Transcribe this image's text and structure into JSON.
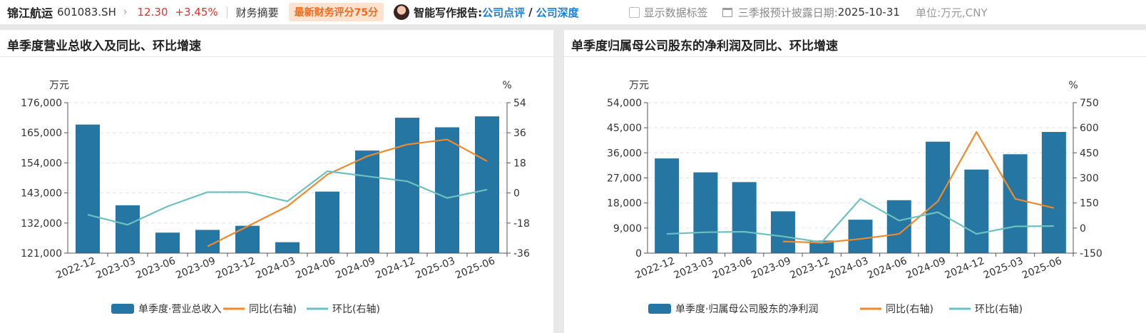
{
  "header": {
    "stock_name": "锦江航运",
    "stock_code": "601083.SH",
    "chevron": "›",
    "price": "12.30",
    "change": "+3.45%",
    "summary_label": "财务摘要",
    "score_badge": "最新财务评分75分",
    "report_label": "智能写作报告:",
    "report_link1": "公司点评",
    "report_separator": "/",
    "report_link2": "公司深度",
    "show_labels_checkbox": "显示数据标签",
    "disclose_label": "三季报预计披露日期:",
    "disclose_date": "2025-10-31",
    "unit": "单位:万元,CNY"
  },
  "colors": {
    "bar": "#2576a3",
    "yoy": "#ee8a2b",
    "qoq": "#6cc1c0",
    "price_red": "#e03030",
    "link_blue": "#1a7fd6"
  },
  "chart_data": [
    {
      "type": "bar",
      "title": "单季度营业总收入及同比、环比增速",
      "left_unit": "万元",
      "right_unit": "%",
      "categories": [
        "2022-12",
        "2023-03",
        "2023-06",
        "2023-09",
        "2023-12",
        "2024-03",
        "2024-06",
        "2024-09",
        "2024-12",
        "2025-03",
        "2025-06"
      ],
      "ylim": [
        121000,
        176000
      ],
      "yticks": [
        121000,
        132000,
        143000,
        154000,
        165000,
        176000
      ],
      "yticklabels": [
        "121,000",
        "132,000",
        "143,000",
        "154,000",
        "165,000",
        "176,000"
      ],
      "y2lim": [
        -36,
        54
      ],
      "y2ticks": [
        -36,
        -18,
        0,
        18,
        36,
        54
      ],
      "y2ticklabels": [
        "-36",
        "-18",
        "0",
        "18",
        "36",
        "54"
      ],
      "series": [
        {
          "name": "单季度·营业总收入",
          "kind": "bar",
          "axis": "left",
          "values": [
            168000,
            138500,
            128500,
            129500,
            131000,
            125000,
            143500,
            158500,
            170500,
            167000,
            171000
          ]
        },
        {
          "name": "同比(右轴)",
          "kind": "line",
          "axis": "right",
          "values": [
            null,
            null,
            null,
            -32,
            -20,
            -8,
            11,
            22,
            29,
            32,
            19
          ]
        },
        {
          "name": "环比(右轴)",
          "kind": "line",
          "axis": "right",
          "values": [
            -13,
            -19,
            -8,
            0.5,
            0.5,
            -5,
            13,
            10,
            7,
            -3,
            2
          ]
        }
      ],
      "grid": true,
      "legend_position": "bottom"
    },
    {
      "type": "bar",
      "title": "单季度归属母公司股东的净利润及同比、环比增速",
      "left_unit": "万元",
      "right_unit": "%",
      "categories": [
        "2022-12",
        "2023-03",
        "2023-06",
        "2023-09",
        "2023-12",
        "2024-03",
        "2024-06",
        "2024-09",
        "2024-12",
        "2025-03",
        "2025-06"
      ],
      "ylim": [
        0,
        54000
      ],
      "yticks": [
        0,
        9000,
        18000,
        27000,
        36000,
        45000,
        54000
      ],
      "yticklabels": [
        "0",
        "9,000",
        "18,000",
        "27,000",
        "36,000",
        "45,000",
        "54,000"
      ],
      "y2lim": [
        -150,
        750
      ],
      "y2ticks": [
        -150,
        0,
        150,
        300,
        450,
        600,
        750
      ],
      "y2ticklabels": [
        "-150",
        "0",
        "150",
        "300",
        "450",
        "600",
        "750"
      ],
      "series": [
        {
          "name": "单季度·归属母公司股东的净利润",
          "kind": "bar",
          "axis": "left",
          "values": [
            34000,
            29000,
            25500,
            15000,
            4500,
            12000,
            19000,
            40000,
            30000,
            35500,
            43500
          ]
        },
        {
          "name": "同比(右轴)",
          "kind": "line",
          "axis": "right",
          "values": [
            null,
            null,
            null,
            -80,
            -88,
            -65,
            -35,
            160,
            575,
            175,
            120
          ]
        },
        {
          "name": "环比(右轴)",
          "kind": "line",
          "axis": "right",
          "values": [
            -35,
            -25,
            -22,
            -50,
            -85,
            175,
            45,
            95,
            -35,
            10,
            12
          ]
        }
      ],
      "grid": true,
      "legend_position": "bottom"
    }
  ]
}
